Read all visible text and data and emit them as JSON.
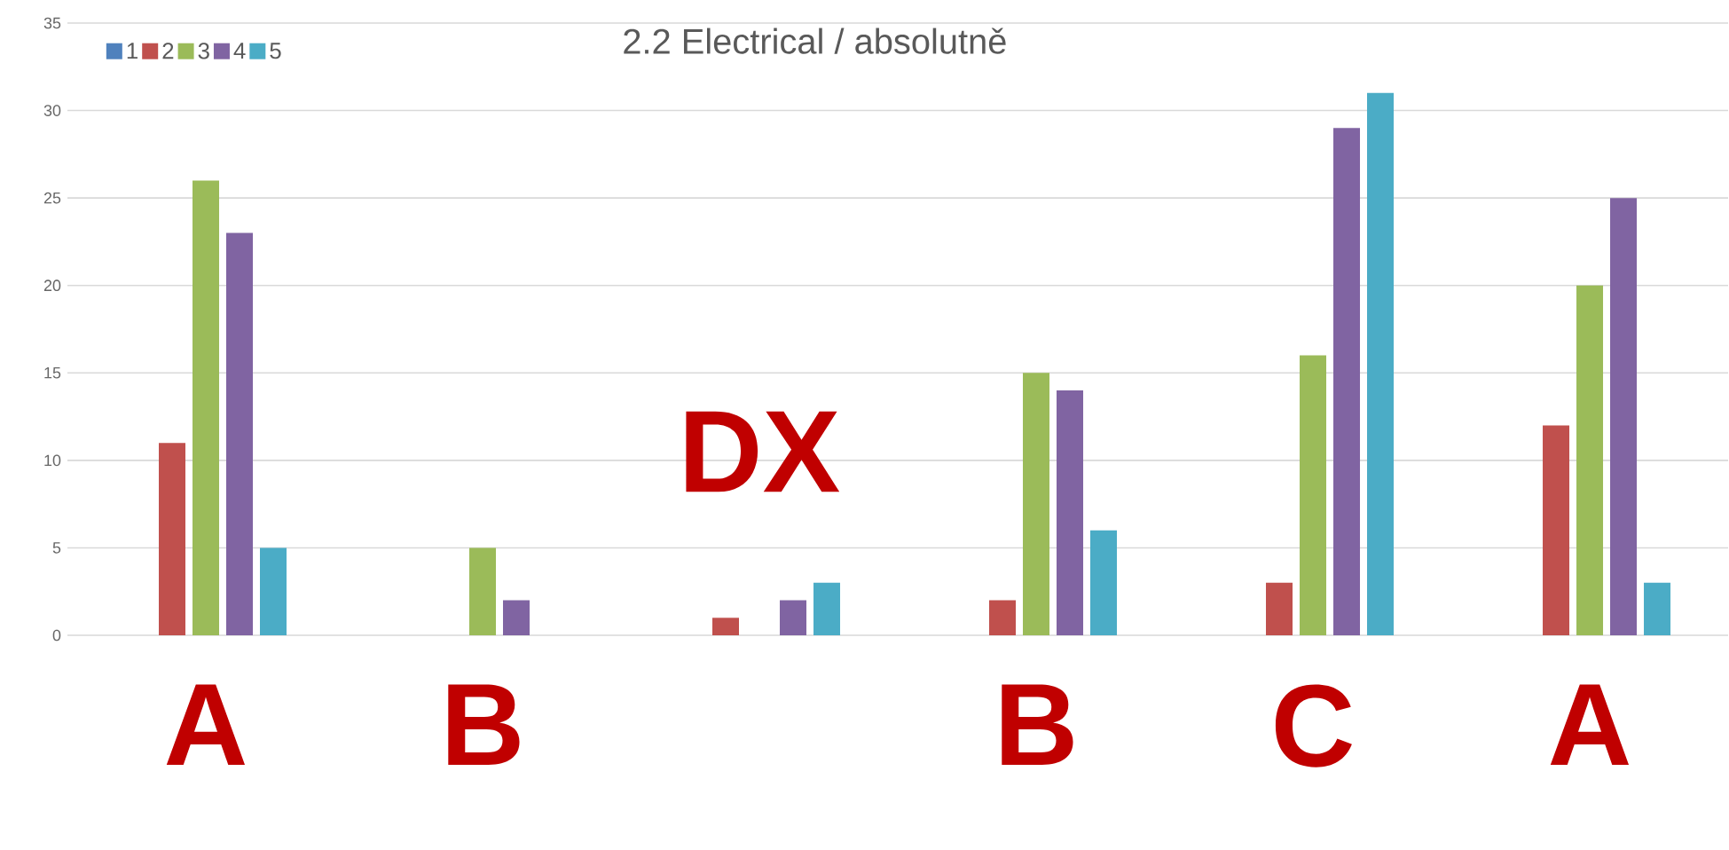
{
  "chart_data": {
    "type": "bar",
    "title": "2.2 Electrical / absolutně",
    "categories": [
      "A",
      "B",
      null,
      "B",
      "C",
      "A"
    ],
    "series": [
      {
        "name": "1",
        "color": "#4f81bd",
        "values": [
          0,
          0,
          0,
          0,
          0,
          0
        ]
      },
      {
        "name": "2",
        "color": "#c0504d",
        "values": [
          11,
          0,
          1,
          2,
          3,
          12
        ]
      },
      {
        "name": "3",
        "color": "#9bbb59",
        "values": [
          26,
          5,
          0,
          15,
          16,
          20
        ]
      },
      {
        "name": "4",
        "color": "#8064a2",
        "values": [
          23,
          2,
          2,
          14,
          29,
          25
        ]
      },
      {
        "name": "5",
        "color": "#4bacc6",
        "values": [
          5,
          0,
          3,
          6,
          31,
          3
        ]
      }
    ],
    "annotations": [
      "DX"
    ],
    "ylim": [
      0,
      35
    ],
    "yticks": [
      0,
      5,
      10,
      15,
      20,
      25,
      30,
      35
    ],
    "grid": "y",
    "legend": "top left"
  }
}
